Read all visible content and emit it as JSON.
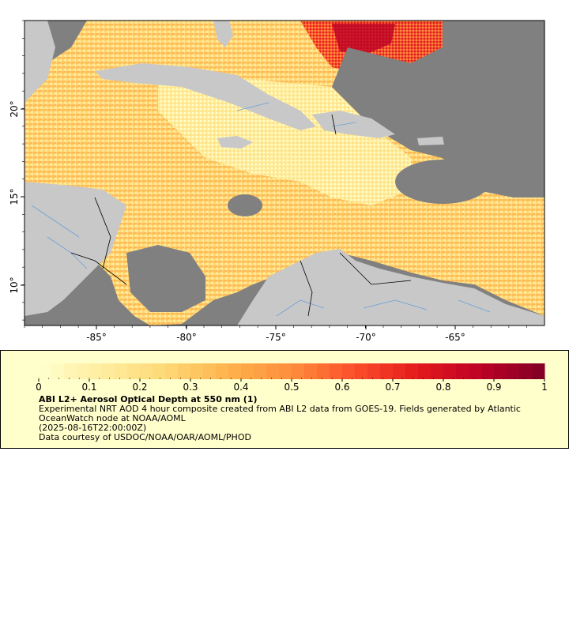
{
  "map": {
    "lon_labels": [
      "-85°",
      "-80°",
      "-75°",
      "-70°",
      "-65°"
    ],
    "lat_labels": [
      "20°",
      "15°",
      "10°"
    ],
    "colors": {
      "ocean": "#808080",
      "land": "#c8c8c8",
      "rivers": "#6aa0d8",
      "borders": "#000000"
    }
  },
  "legend": {
    "colorbar_ticks": [
      "0",
      "0.1",
      "0.2",
      "0.3",
      "0.4",
      "0.5",
      "0.6",
      "0.7",
      "0.8",
      "0.9",
      "1"
    ],
    "colorbar_range": [
      0,
      1
    ],
    "colorscale": [
      "#ffffcc",
      "#ffeda0",
      "#fed976",
      "#feb24c",
      "#fd8d3c",
      "#fc4e2a",
      "#e31a1c",
      "#bd0026",
      "#800026"
    ],
    "title": "ABI L2+ Aerosol Optical Depth at 550 nm (1)",
    "line1": "Experimental NRT AOD 4 hour composite created from ABI L2 data from GOES-19. Fields generated by Atlantic OceanWatch node at NOAA/AOML",
    "line2": "(2025-08-16T22:00:00Z)",
    "line3": "Data courtesy of USDOC/NOAA/OAR/AOML/PHOD"
  }
}
